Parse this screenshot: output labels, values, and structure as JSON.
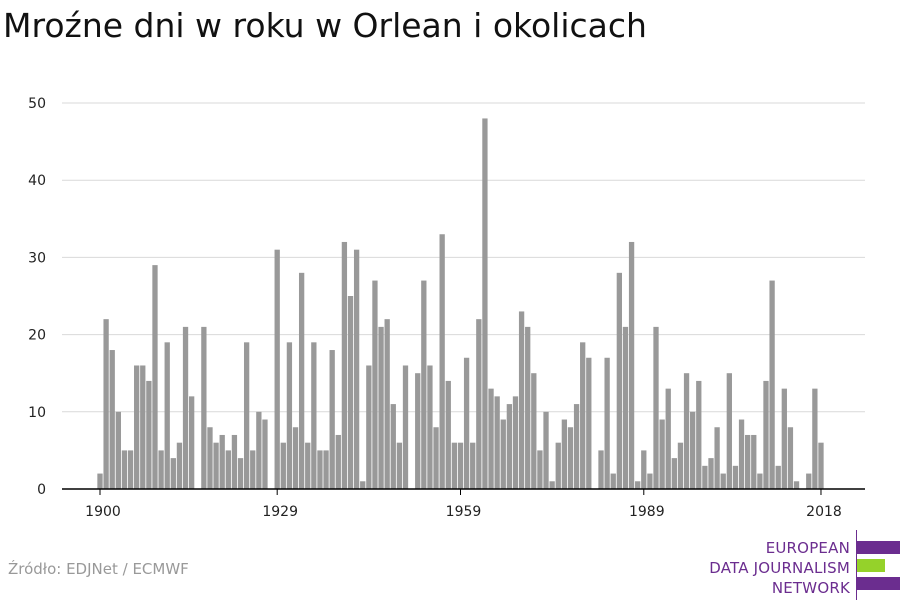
{
  "title": "Mroźne dni w roku w Orlean i okolicach",
  "source": "Źródło: EDJNet / ECMWF",
  "logo": {
    "lines": [
      "EUROPEAN",
      "DATA JOURNALISM",
      "NETWORK"
    ],
    "colors": [
      "#6b2d8f",
      "#95d22a",
      "#6b2d8f"
    ]
  },
  "colors": {
    "bar": "#999999",
    "grid": "#d9d9d9",
    "axis": "#000000"
  },
  "chart_data": {
    "type": "bar",
    "title": "Mroźne dni w roku w Orlean i okolicach",
    "xlabel": "",
    "ylabel": "",
    "ylim": [
      0,
      50
    ],
    "yticks": [
      0,
      10,
      20,
      30,
      40,
      50
    ],
    "xticks": [
      1900,
      1929,
      1959,
      1989,
      2018
    ],
    "grid": true,
    "x": [
      1900,
      1901,
      1902,
      1903,
      1904,
      1905,
      1906,
      1907,
      1908,
      1909,
      1910,
      1911,
      1912,
      1913,
      1914,
      1915,
      1916,
      1917,
      1918,
      1919,
      1920,
      1921,
      1922,
      1923,
      1924,
      1925,
      1926,
      1927,
      1928,
      1929,
      1930,
      1931,
      1932,
      1933,
      1934,
      1935,
      1936,
      1937,
      1938,
      1939,
      1940,
      1941,
      1942,
      1943,
      1944,
      1945,
      1946,
      1947,
      1948,
      1949,
      1950,
      1951,
      1952,
      1953,
      1954,
      1955,
      1956,
      1957,
      1958,
      1959,
      1960,
      1961,
      1962,
      1963,
      1964,
      1965,
      1966,
      1967,
      1968,
      1969,
      1970,
      1971,
      1972,
      1973,
      1974,
      1975,
      1976,
      1977,
      1978,
      1979,
      1980,
      1981,
      1982,
      1983,
      1984,
      1985,
      1986,
      1987,
      1988,
      1989,
      1990,
      1991,
      1992,
      1993,
      1994,
      1995,
      1996,
      1997,
      1998,
      1999,
      2000,
      2001,
      2002,
      2003,
      2004,
      2005,
      2006,
      2007,
      2008,
      2009,
      2010,
      2011,
      2012,
      2013,
      2014,
      2015,
      2016,
      2017,
      2018
    ],
    "values": [
      2,
      22,
      18,
      10,
      5,
      5,
      16,
      16,
      14,
      29,
      5,
      19,
      4,
      6,
      21,
      12,
      0,
      21,
      8,
      6,
      7,
      5,
      7,
      4,
      19,
      5,
      10,
      9,
      0,
      31,
      6,
      19,
      8,
      28,
      6,
      19,
      5,
      5,
      18,
      7,
      32,
      25,
      31,
      1,
      16,
      27,
      21,
      22,
      11,
      6,
      16,
      0,
      15,
      27,
      16,
      8,
      33,
      14,
      6,
      6,
      17,
      6,
      22,
      48,
      13,
      12,
      9,
      11,
      12,
      23,
      21,
      15,
      5,
      10,
      1,
      6,
      9,
      8,
      11,
      19,
      17,
      0,
      5,
      17,
      2,
      28,
      21,
      32,
      1,
      5,
      2,
      21,
      9,
      13,
      4,
      6,
      15,
      10,
      14,
      3,
      4,
      8,
      2,
      15,
      3,
      9,
      7,
      7,
      2,
      14,
      27,
      3,
      13,
      8,
      1,
      0,
      2,
      13,
      6
    ]
  }
}
